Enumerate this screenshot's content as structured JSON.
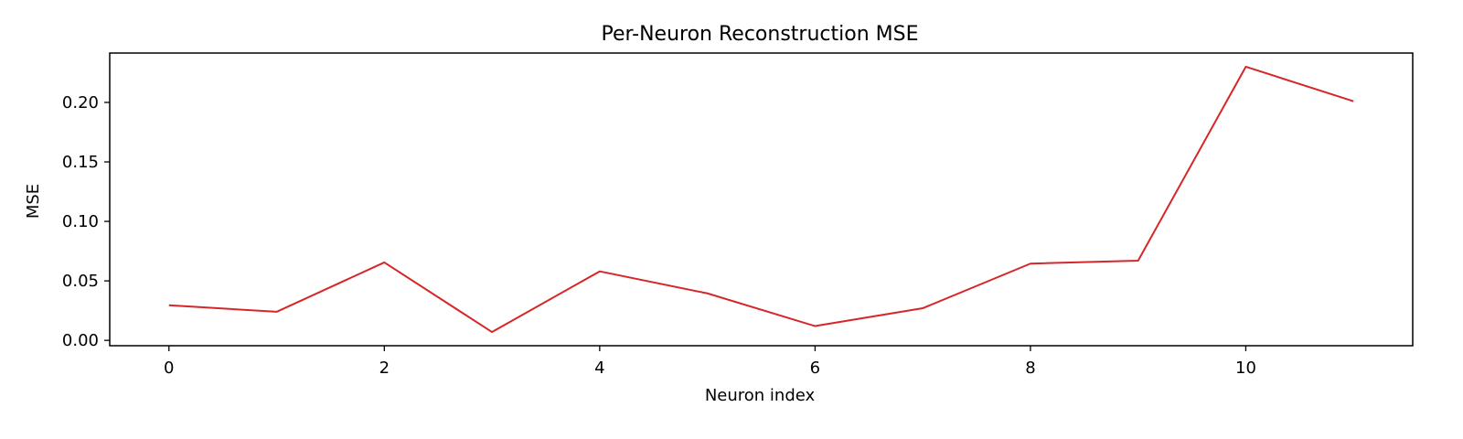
{
  "chart_data": {
    "type": "line",
    "title": "Per-Neuron Reconstruction MSE",
    "xlabel": "Neuron index",
    "ylabel": "MSE",
    "x": [
      0,
      1,
      2,
      3,
      4,
      5,
      6,
      7,
      8,
      9,
      10,
      11
    ],
    "series": [
      {
        "values": [
          0.0295,
          0.024,
          0.0655,
          0.007,
          0.058,
          0.0395,
          0.012,
          0.027,
          0.0645,
          0.067,
          0.23,
          0.201
        ]
      }
    ],
    "xticks": [
      0,
      2,
      4,
      6,
      8,
      10
    ],
    "xtick_labels": [
      "0",
      "2",
      "4",
      "6",
      "8",
      "10"
    ],
    "yticks": [
      0.0,
      0.05,
      0.1,
      0.15,
      0.2
    ],
    "ytick_labels": [
      "0.00",
      "0.05",
      "0.10",
      "0.15",
      "0.20"
    ],
    "xlim": [
      -0.55,
      11.55
    ],
    "ylim": [
      -0.0045,
      0.2415
    ],
    "grid": false,
    "line_color": "#d62728"
  }
}
